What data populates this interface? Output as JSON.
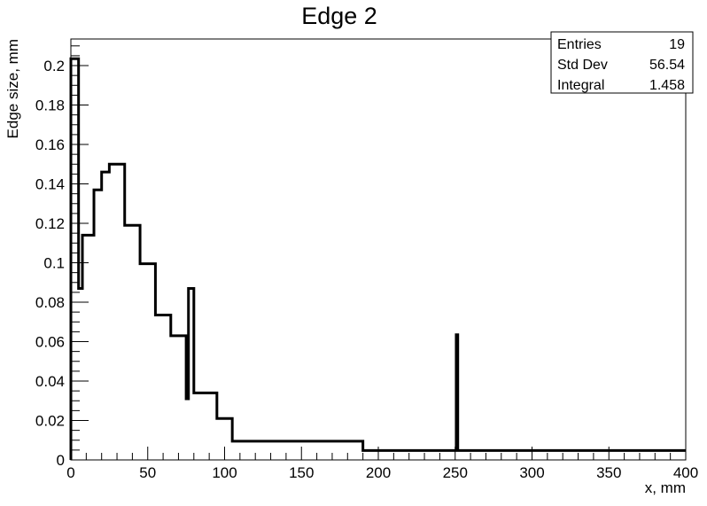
{
  "chart_data": {
    "type": "histogram",
    "title": "Edge 2",
    "xlabel": "x, mm",
    "ylabel": "Edge size, mm",
    "xlim": [
      0,
      400
    ],
    "ylim": [
      0,
      0.2135
    ],
    "x_ticks": [
      "0",
      "50",
      "100",
      "150",
      "200",
      "250",
      "300",
      "350",
      "400"
    ],
    "y_ticks": [
      "0",
      "0.02",
      "0.04",
      "0.06",
      "0.08",
      "0.1",
      "0.12",
      "0.14",
      "0.16",
      "0.18",
      "0.2"
    ],
    "bins": [
      {
        "x0": 0,
        "x1": 5,
        "y": 0.2035
      },
      {
        "x0": 5,
        "x1": 7.5,
        "y": 0.087
      },
      {
        "x0": 7.5,
        "x1": 15,
        "y": 0.114
      },
      {
        "x0": 15,
        "x1": 20,
        "y": 0.137
      },
      {
        "x0": 20,
        "x1": 25,
        "y": 0.146
      },
      {
        "x0": 25,
        "x1": 35,
        "y": 0.15
      },
      {
        "x0": 35,
        "x1": 45,
        "y": 0.119
      },
      {
        "x0": 45,
        "x1": 55,
        "y": 0.0995
      },
      {
        "x0": 55,
        "x1": 65,
        "y": 0.0735
      },
      {
        "x0": 65,
        "x1": 75,
        "y": 0.063
      },
      {
        "x0": 75,
        "x1": 76.5,
        "y": 0.031
      },
      {
        "x0": 76.5,
        "x1": 80,
        "y": 0.087
      },
      {
        "x0": 80,
        "x1": 95,
        "y": 0.034
      },
      {
        "x0": 95,
        "x1": 105,
        "y": 0.021
      },
      {
        "x0": 105,
        "x1": 190,
        "y": 0.0095
      },
      {
        "x0": 190,
        "x1": 250.7,
        "y": 0.0048
      },
      {
        "x0": 250.7,
        "x1": 251.7,
        "y": 0.0635
      },
      {
        "x0": 251.7,
        "x1": 400,
        "y": 0.0048
      }
    ],
    "grid": false,
    "stats_box": {
      "rows": [
        {
          "label": "Entries",
          "value": "19"
        },
        {
          "label": "Std Dev",
          "value": "56.54"
        },
        {
          "label": "Integral",
          "value": "1.458"
        }
      ]
    }
  }
}
